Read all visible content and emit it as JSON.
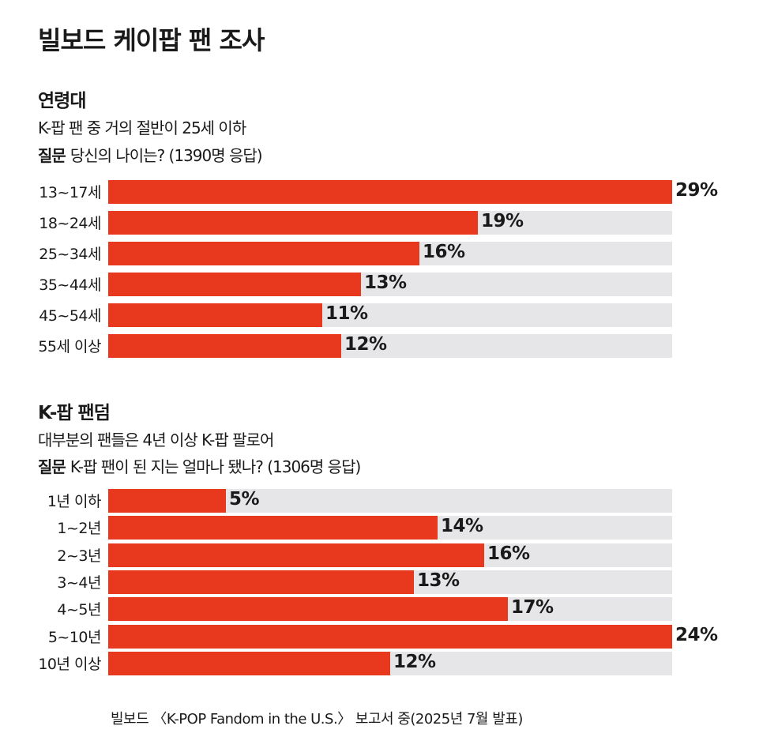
{
  "title": "빌보드 케이팝 팬 조사",
  "chart_data": [
    {
      "type": "bar",
      "title": "연령대",
      "subtitle": "K-팝 팬 중 거의 절반이 25세 이하",
      "question_label": "질문",
      "question": "당신의 나이는? (1390명 응답)",
      "categories": [
        "13~17세",
        "18~24세",
        "25~34세",
        "35~44세",
        "45~54세",
        "55세 이상"
      ],
      "values": [
        29,
        19,
        16,
        13,
        11,
        12
      ],
      "value_labels": [
        "29%",
        "19%",
        "16%",
        "13%",
        "11%",
        "12%"
      ],
      "unit": "%",
      "xlim": [
        0,
        29
      ]
    },
    {
      "type": "bar",
      "title": "K-팝 팬덤",
      "subtitle": "대부분의 팬들은 4년 이상 K-팝 팔로어",
      "question_label": "질문",
      "question": "K-팝 팬이 된 지는 얼마나 됐나? (1306명 응답)",
      "categories": [
        "1년 이하",
        "1~2년",
        "2~3년",
        "3~4년",
        "4~5년",
        "5~10년",
        "10년 이상"
      ],
      "values": [
        5,
        14,
        16,
        13,
        17,
        24,
        12
      ],
      "value_labels": [
        "5%",
        "14%",
        "16%",
        "13%",
        "17%",
        "24%",
        "12%"
      ],
      "unit": "%",
      "xlim": [
        0,
        24
      ]
    }
  ],
  "source": "빌보드 〈K-POP Fandom in the U.S.〉 보고서 중(2025년 7월 발표)",
  "colors": {
    "bar": "#e8391f",
    "track": "#e6e6e8",
    "text": "#1a1a1a"
  }
}
